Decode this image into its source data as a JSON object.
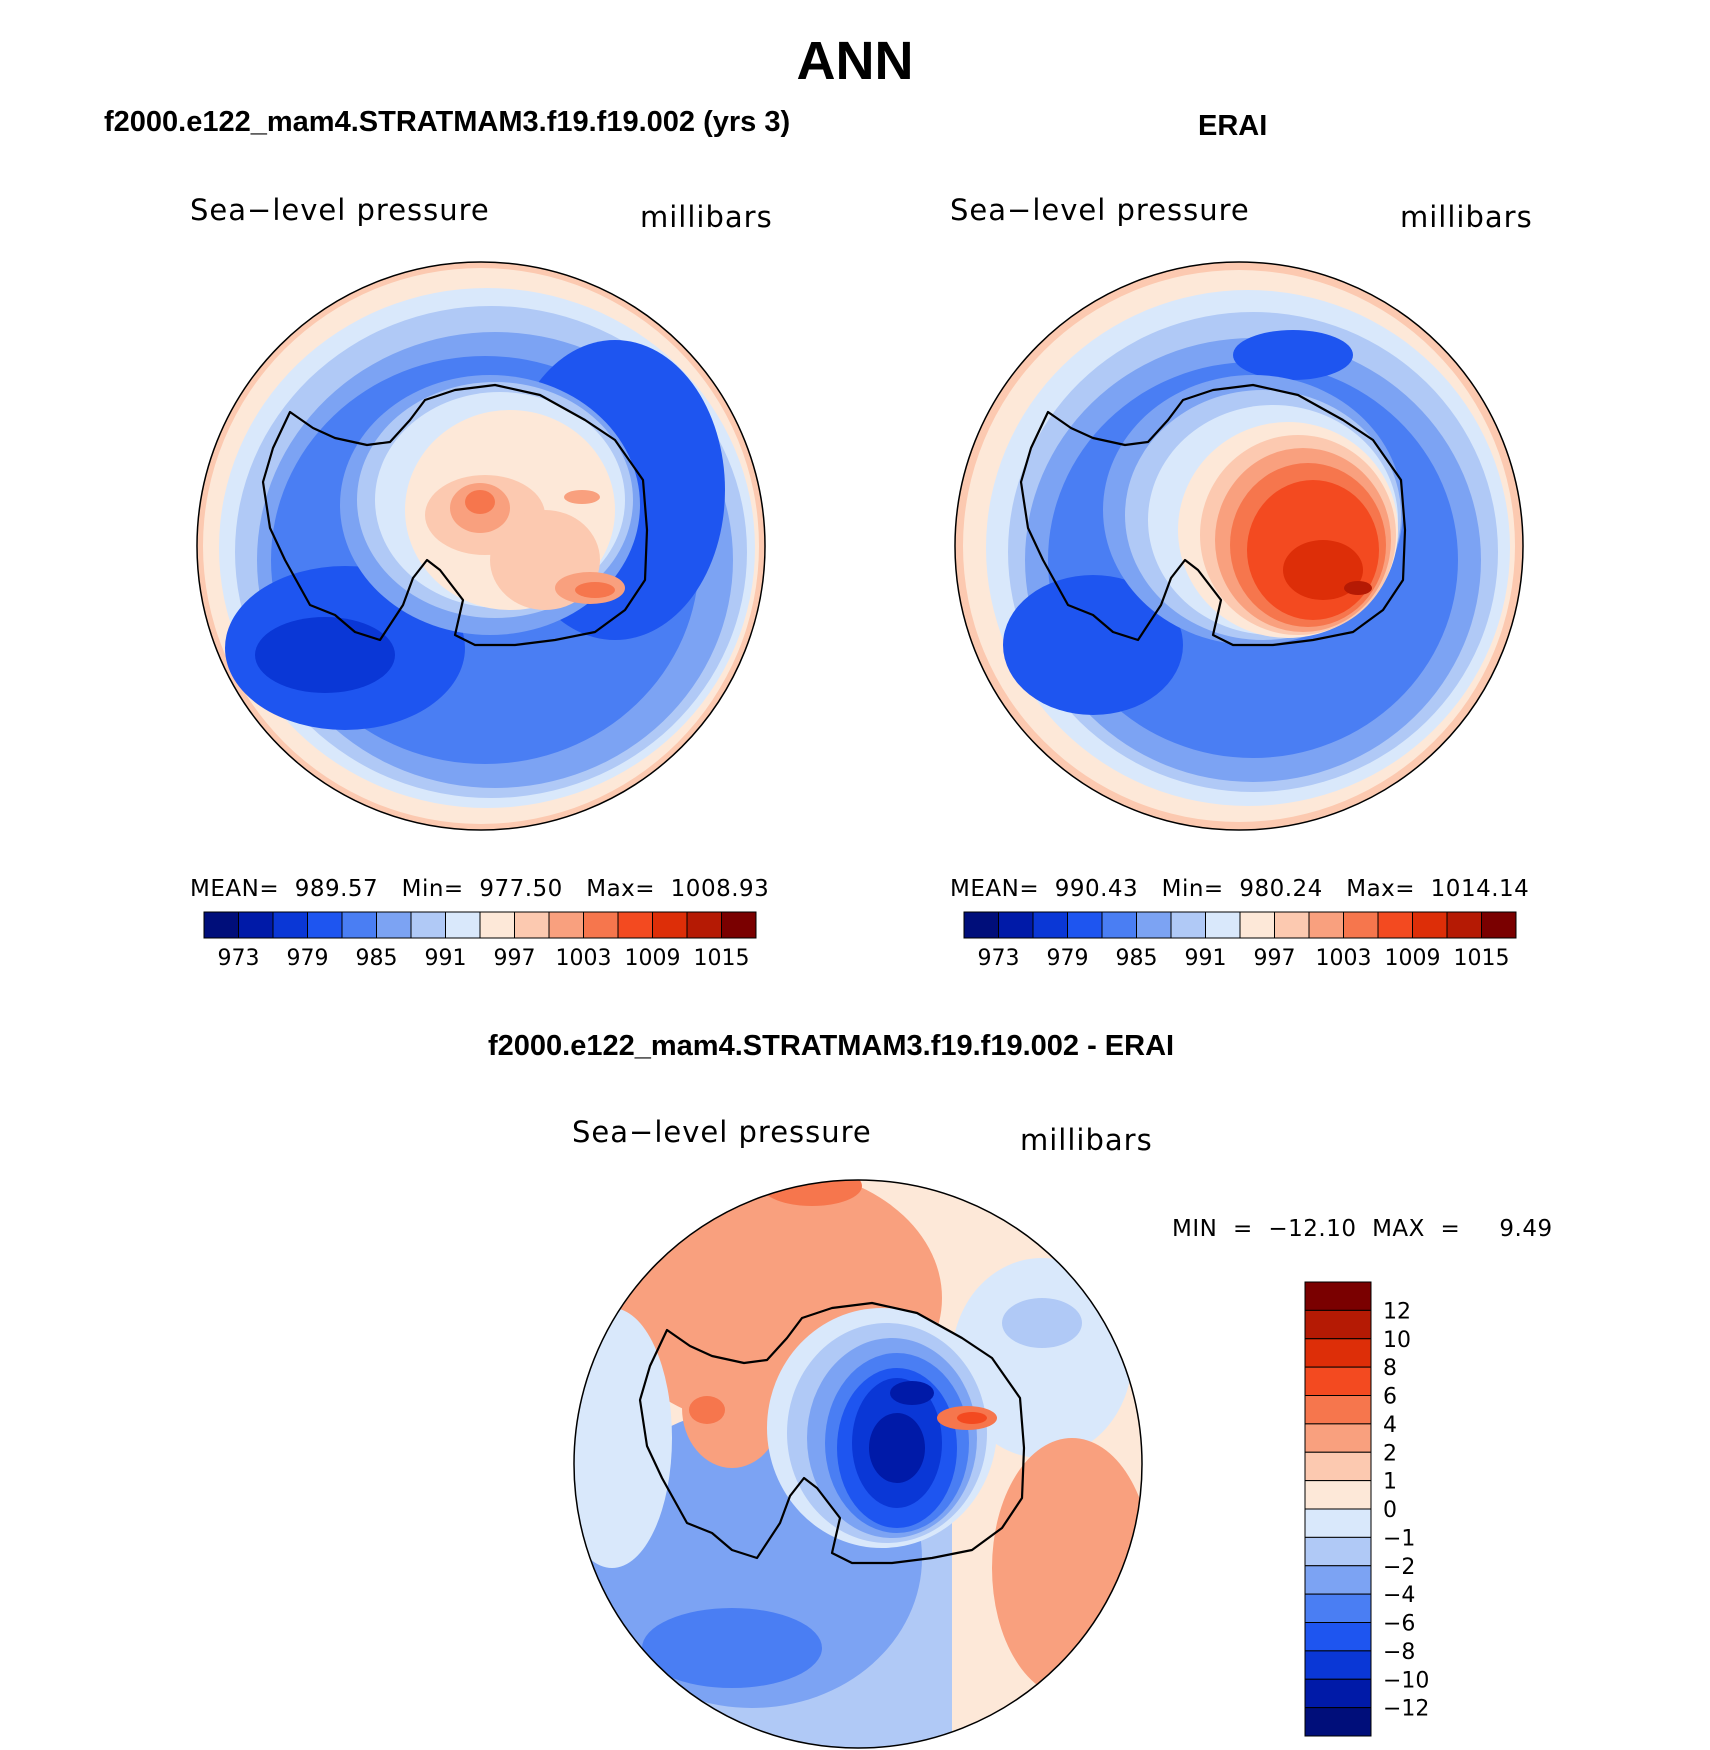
{
  "title": "ANN",
  "panels": [
    {
      "case": "f2000.e122_mam4.STRATMAM3.f19.f19.002 (yrs 3)",
      "variable": "Sea−level pressure",
      "units": "millibars",
      "stats": "MEAN=  989.57   Min=  977.50   Max=  1008.93",
      "mean": 989.57,
      "min": 977.5,
      "max": 1008.93
    },
    {
      "case": "ERAI",
      "variable": "Sea−level pressure",
      "units": "millibars",
      "stats": "MEAN=  990.43   Min=  980.24   Max=  1014.14",
      "mean": 990.43,
      "min": 980.24,
      "max": 1014.14
    }
  ],
  "diff_panel": {
    "case": "f2000.e122_mam4.STRATMAM3.f19.f19.002 - ERAI",
    "variable": "Sea−level pressure",
    "units": "millibars",
    "stats": "MIN  =  −12.10  MAX  =     9.49",
    "min": -12.1,
    "max": 9.49
  },
  "colorbar_abs": {
    "colors": [
      "#000e7a",
      "#001aa8",
      "#0a37d6",
      "#1e55f0",
      "#4a7ef3",
      "#7ca3f3",
      "#b0c9f6",
      "#d9e8fb",
      "#fde8d8",
      "#fcc9b0",
      "#f9a07e",
      "#f6764d",
      "#f34a20",
      "#dd2e08",
      "#b51a04",
      "#7a0000"
    ],
    "labels": [
      "973",
      "979",
      "985",
      "991",
      "997",
      "1003",
      "1009",
      "1015"
    ]
  },
  "colorbar_diff": {
    "colors": [
      "#7a0000",
      "#b51a04",
      "#dd2e08",
      "#f34a20",
      "#f6764d",
      "#f9a07e",
      "#fcc9b0",
      "#fde8d8",
      "#d9e8fb",
      "#b0c9f6",
      "#7ca3f3",
      "#4a7ef3",
      "#1e55f0",
      "#0a37d6",
      "#001aa8",
      "#000e7a"
    ],
    "labels": [
      "12",
      "10",
      "8",
      "6",
      "4",
      "2",
      "1",
      "0",
      "−1",
      "−2",
      "−4",
      "−6",
      "−8",
      "−10",
      "−12"
    ]
  },
  "chart_data": [
    {
      "type": "heatmap",
      "panel": "model",
      "projection": "south polar stereographic",
      "levels": [
        973,
        976,
        979,
        982,
        985,
        988,
        991,
        994,
        997,
        1000,
        1003,
        1006,
        1009,
        1012,
        1015
      ],
      "mean": 989.57,
      "min": 977.5,
      "max": 1008.93
    },
    {
      "type": "heatmap",
      "panel": "ERAI",
      "projection": "south polar stereographic",
      "levels": [
        973,
        976,
        979,
        982,
        985,
        988,
        991,
        994,
        997,
        1000,
        1003,
        1006,
        1009,
        1012,
        1015
      ],
      "mean": 990.43,
      "min": 980.24,
      "max": 1014.14
    },
    {
      "type": "heatmap",
      "panel": "difference",
      "projection": "south polar stereographic",
      "levels": [
        -12,
        -10,
        -8,
        -6,
        -4,
        -2,
        -1,
        0,
        1,
        2,
        4,
        6,
        8,
        10,
        12
      ],
      "min": -12.1,
      "max": 9.49
    }
  ]
}
